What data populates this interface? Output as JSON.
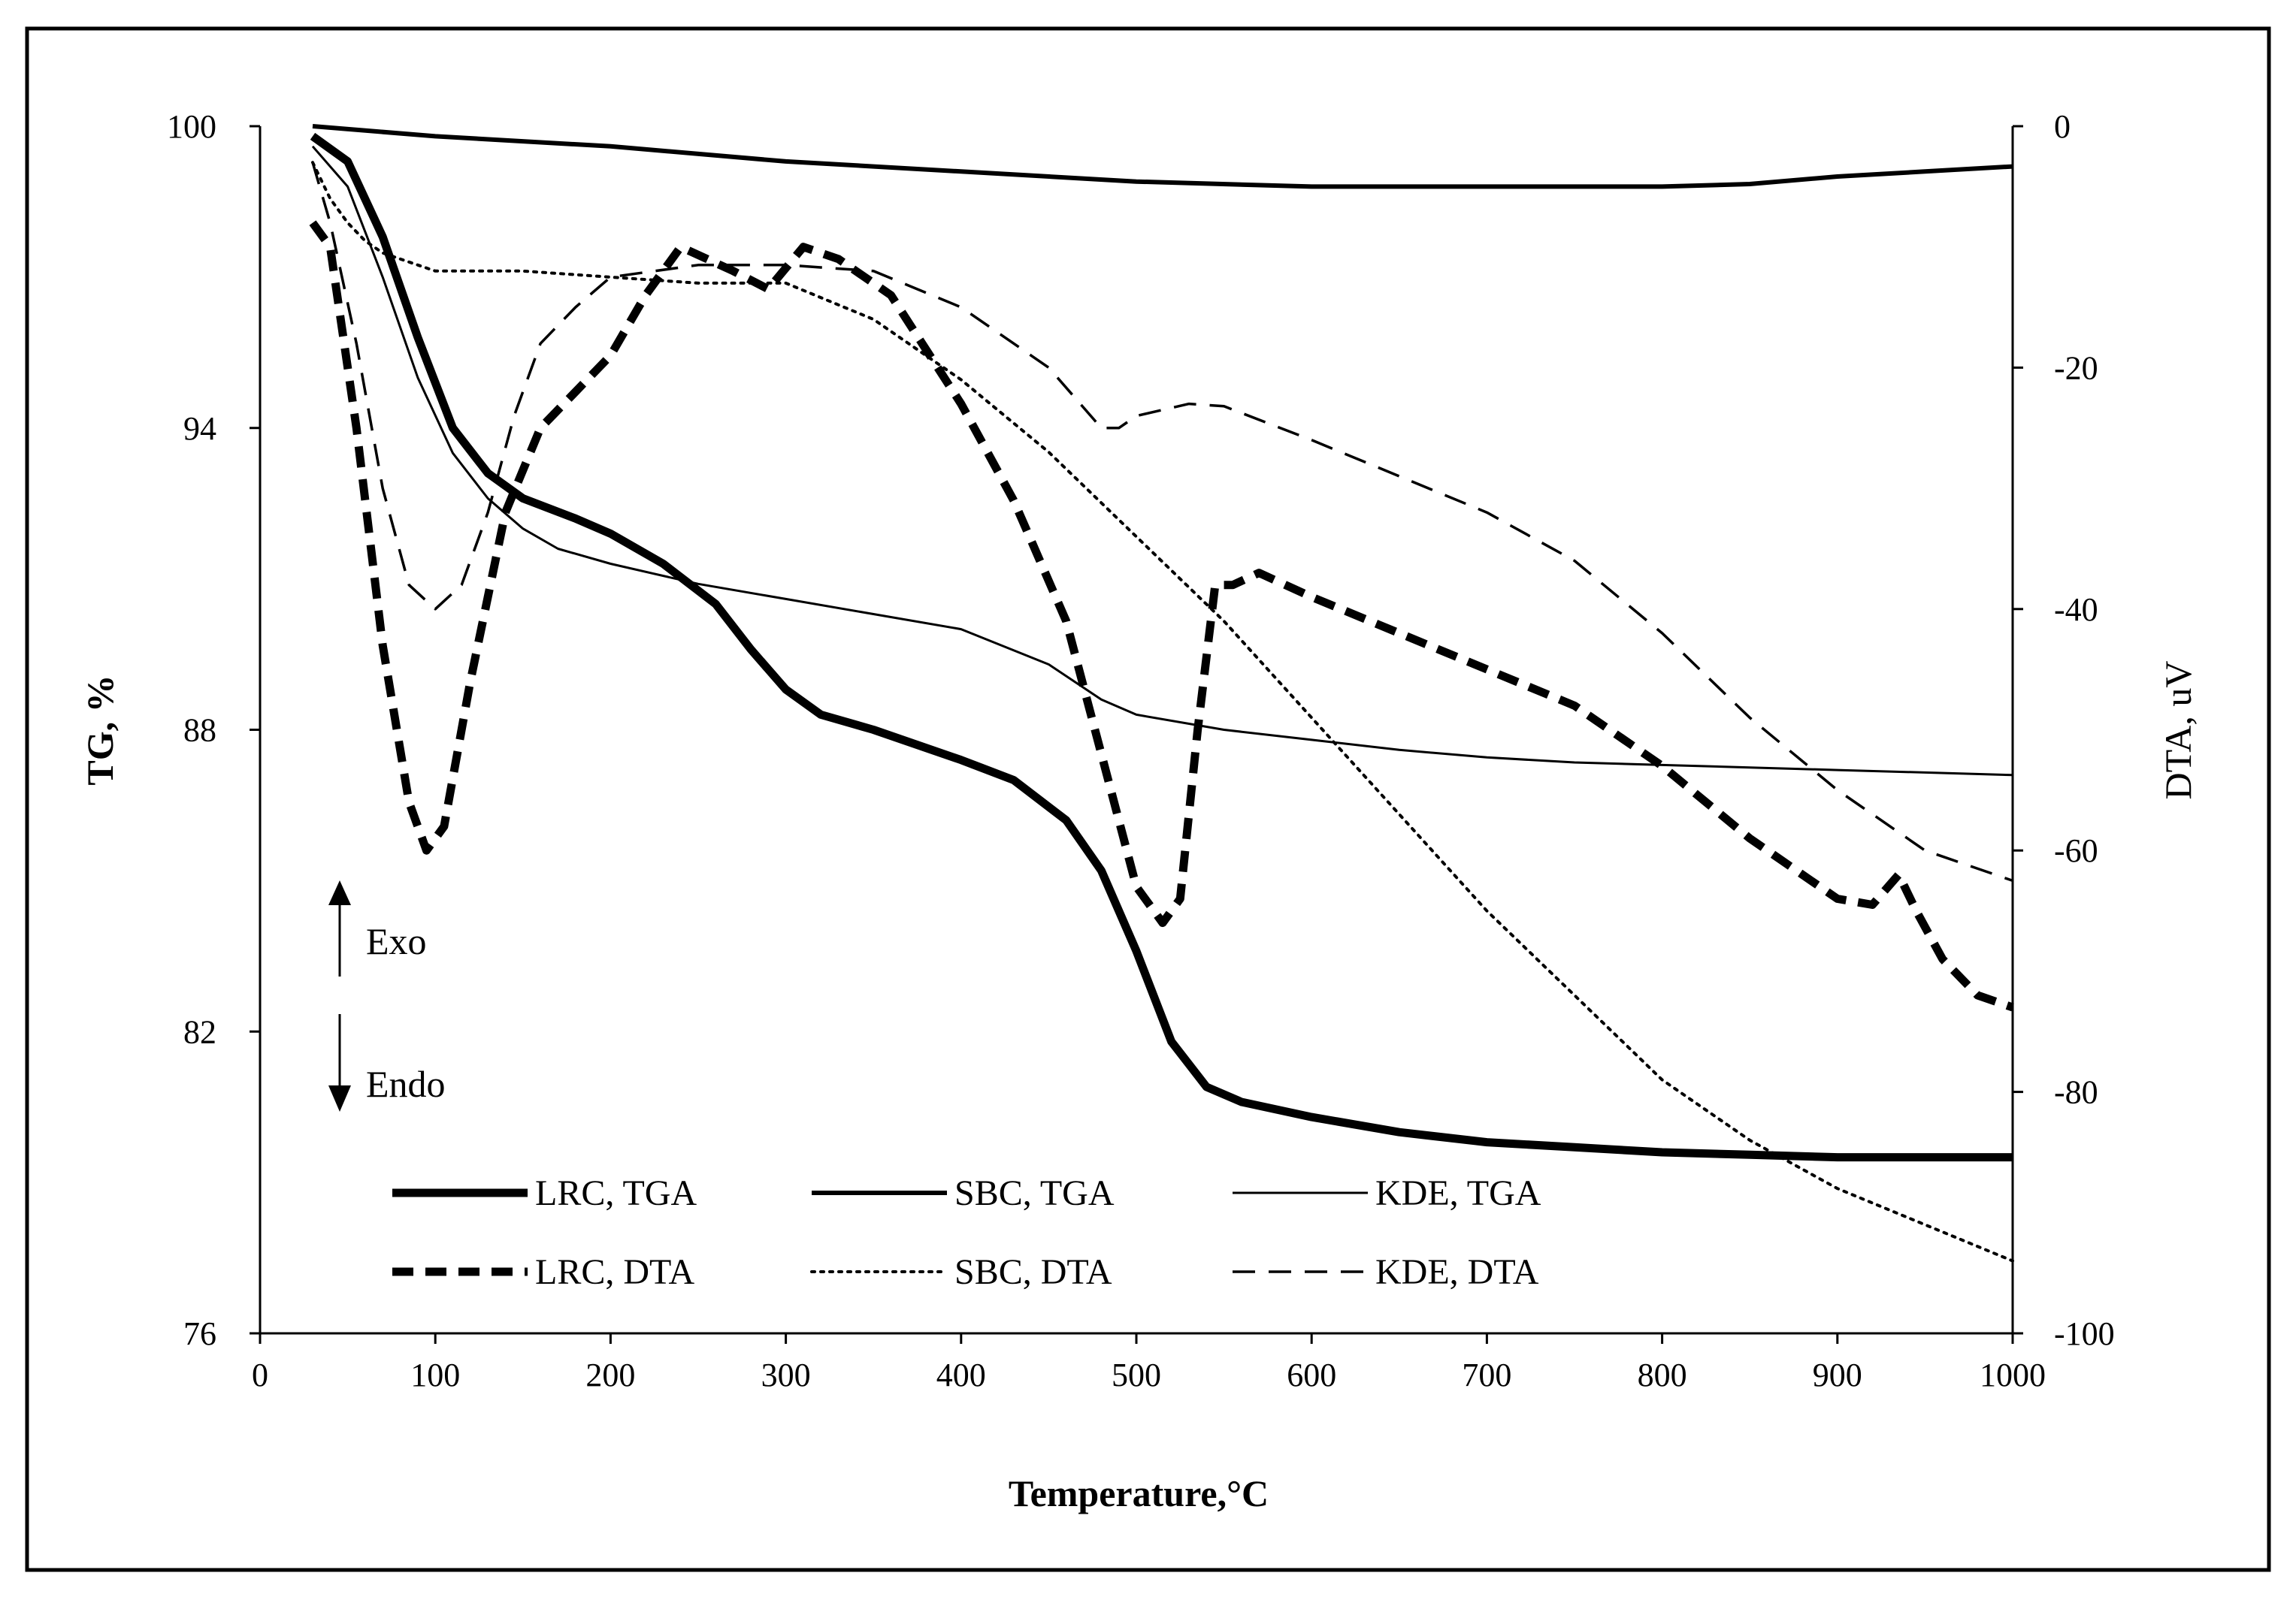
{
  "chart_data": {
    "type": "line",
    "title": "",
    "xlabel": "Temperature,°C",
    "ylabel_left": "TG, %",
    "ylabel_right": "DTA, uV",
    "xlim": [
      0,
      1000
    ],
    "ylim_left": [
      76,
      100
    ],
    "ylim_right": [
      -100,
      0
    ],
    "x_ticks": [
      "0",
      "100",
      "200",
      "300",
      "400",
      "500",
      "600",
      "700",
      "800",
      "900",
      "1000"
    ],
    "y_left_ticks": [
      "76",
      "82",
      "88",
      "94",
      "100"
    ],
    "y_right_ticks": [
      "-100",
      "-80",
      "-60",
      "-40",
      "-20",
      "0"
    ],
    "annotations": {
      "exo": "Exo",
      "endo": "Endo"
    },
    "grid": false,
    "legend_position": "bottom-center",
    "series": [
      {
        "name": "LRC, TGA",
        "axis": "left",
        "style": "solid-thick",
        "x": [
          30,
          50,
          70,
          90,
          110,
          130,
          150,
          180,
          200,
          230,
          260,
          280,
          300,
          320,
          350,
          400,
          430,
          460,
          480,
          500,
          520,
          540,
          560,
          600,
          650,
          700,
          750,
          800,
          850,
          900,
          950,
          1000
        ],
        "y": [
          99.8,
          99.3,
          97.8,
          95.8,
          94.0,
          93.1,
          92.6,
          92.2,
          91.9,
          91.3,
          90.5,
          89.6,
          88.8,
          88.3,
          88.0,
          87.4,
          87.0,
          86.2,
          85.2,
          83.6,
          81.8,
          80.9,
          80.6,
          80.3,
          80.0,
          79.8,
          79.7,
          79.6,
          79.55,
          79.5,
          79.5,
          79.5
        ]
      },
      {
        "name": "SBC, TGA",
        "axis": "left",
        "style": "solid-medium",
        "x": [
          30,
          100,
          200,
          300,
          400,
          500,
          600,
          700,
          800,
          850,
          900,
          950,
          1000
        ],
        "y": [
          100.0,
          99.8,
          99.6,
          99.3,
          99.1,
          98.9,
          98.8,
          98.8,
          98.8,
          98.85,
          99.0,
          99.1,
          99.2
        ]
      },
      {
        "name": "KDE, TGA",
        "axis": "left",
        "style": "solid-thin",
        "x": [
          30,
          50,
          70,
          90,
          110,
          130,
          150,
          170,
          200,
          250,
          300,
          350,
          400,
          450,
          480,
          500,
          550,
          600,
          650,
          700,
          750,
          800,
          850,
          900,
          950,
          1000
        ],
        "y": [
          99.6,
          98.8,
          97.0,
          95.0,
          93.5,
          92.6,
          92.0,
          91.6,
          91.3,
          90.9,
          90.6,
          90.3,
          90.0,
          89.3,
          88.6,
          88.3,
          88.0,
          87.8,
          87.6,
          87.45,
          87.35,
          87.3,
          87.25,
          87.2,
          87.15,
          87.1
        ]
      },
      {
        "name": "LRC, DTA",
        "axis": "right",
        "style": "dash-thick",
        "x": [
          30,
          40,
          55,
          70,
          85,
          95,
          105,
          120,
          140,
          160,
          180,
          200,
          220,
          240,
          255,
          270,
          290,
          310,
          330,
          360,
          400,
          430,
          460,
          480,
          500,
          515,
          525,
          535,
          545,
          555,
          570,
          600,
          650,
          700,
          750,
          800,
          850,
          900,
          920,
          935,
          945,
          960,
          980,
          1000
        ],
        "y": [
          -8,
          -10,
          -25,
          -43,
          -56,
          -60,
          -58,
          -46,
          -32,
          -25,
          -22,
          -19,
          -14,
          -10,
          -11,
          -12,
          -13.5,
          -10,
          -11,
          -14,
          -23,
          -31,
          -41,
          -52,
          -63,
          -66,
          -64,
          -50,
          -38,
          -38,
          -37,
          -39,
          -42,
          -45,
          -48,
          -53,
          -59,
          -64,
          -64.5,
          -62,
          -65,
          -69,
          -72,
          -73
        ]
      },
      {
        "name": "SBC, DTA",
        "axis": "right",
        "style": "dotted",
        "x": [
          30,
          40,
          50,
          60,
          70,
          80,
          90,
          100,
          150,
          200,
          250,
          300,
          350,
          400,
          450,
          500,
          550,
          600,
          650,
          700,
          750,
          800,
          850,
          900,
          950,
          1000
        ],
        "y": [
          -3,
          -6,
          -8,
          -9.5,
          -10.5,
          -11,
          -11.5,
          -12,
          -12,
          -12.5,
          -13,
          -13,
          -16,
          -21,
          -27,
          -34,
          -41,
          -49,
          -57,
          -65,
          -72,
          -79,
          -84,
          -88,
          -91,
          -94
        ]
      },
      {
        "name": "KDE, DTA",
        "axis": "right",
        "style": "dashed-thin",
        "x": [
          30,
          40,
          55,
          70,
          85,
          100,
          115,
          130,
          145,
          160,
          180,
          200,
          250,
          300,
          350,
          400,
          450,
          480,
          490,
          500,
          530,
          550,
          600,
          650,
          700,
          750,
          800,
          850,
          900,
          950,
          1000
        ],
        "y": [
          -3,
          -8,
          -18,
          -30,
          -38,
          -40,
          -38,
          -32,
          -24,
          -18,
          -15,
          -12.5,
          -11.5,
          -11.5,
          -12,
          -15,
          -20,
          -25,
          -25,
          -24,
          -23,
          -23.2,
          -26,
          -29,
          -32,
          -36,
          -42,
          -49,
          -55,
          -60,
          -62.5
        ]
      }
    ]
  }
}
